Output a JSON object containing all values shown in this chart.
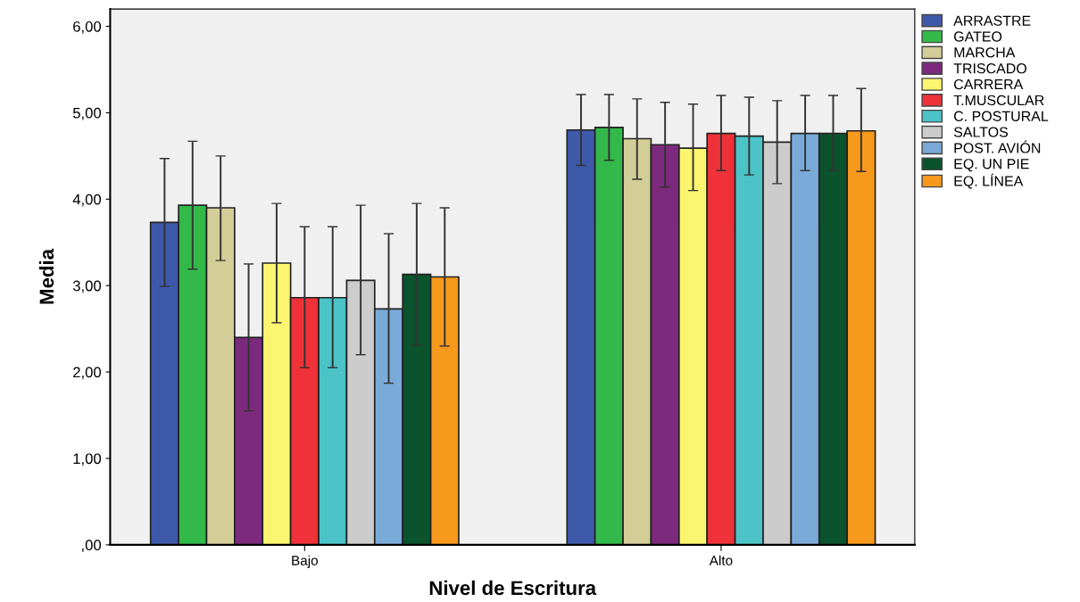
{
  "chart_data": {
    "type": "bar",
    "xlabel": "Nivel de Escritura",
    "ylabel": "Media",
    "categories": [
      "Bajo",
      "Alto"
    ],
    "ylim": [
      0,
      6.2
    ],
    "yticks": [
      {
        "value": 0,
        "label": ",00"
      },
      {
        "value": 1,
        "label": "1,00"
      },
      {
        "value": 2,
        "label": "2,00"
      },
      {
        "value": 3,
        "label": "3,00"
      },
      {
        "value": 4,
        "label": "4,00"
      },
      {
        "value": 5,
        "label": "5,00"
      },
      {
        "value": 6,
        "label": "6,00"
      }
    ],
    "grid": false,
    "legend": "top right",
    "series": [
      {
        "name": "ARRASTRE",
        "color": "#3f59aa",
        "values": [
          3.73,
          4.8
        ],
        "errors": [
          [
            2.99,
            4.47
          ],
          [
            4.39,
            5.21
          ]
        ]
      },
      {
        "name": "GATEO",
        "color": "#33b94a",
        "values": [
          3.93,
          4.83
        ],
        "errors": [
          [
            3.19,
            4.67
          ],
          [
            4.45,
            5.21
          ]
        ]
      },
      {
        "name": "MARCHA",
        "color": "#d3ce97",
        "values": [
          3.9,
          4.7
        ],
        "errors": [
          [
            3.29,
            4.5
          ],
          [
            4.23,
            5.16
          ]
        ]
      },
      {
        "name": "TRISCADO",
        "color": "#7c2a7e",
        "values": [
          2.4,
          4.63
        ],
        "errors": [
          [
            1.55,
            3.25
          ],
          [
            4.14,
            5.12
          ]
        ]
      },
      {
        "name": "CARRERA",
        "color": "#fbf56f",
        "values": [
          3.26,
          4.59
        ],
        "errors": [
          [
            2.57,
            3.95
          ],
          [
            4.1,
            5.1
          ]
        ]
      },
      {
        "name": "T.MUSCULAR",
        "color": "#ef3239",
        "values": [
          2.86,
          4.76
        ],
        "errors": [
          [
            2.05,
            3.68
          ],
          [
            4.33,
            5.2
          ]
        ]
      },
      {
        "name": "C. POSTURAL",
        "color": "#4bc3c7",
        "values": [
          2.86,
          4.73
        ],
        "errors": [
          [
            2.05,
            3.68
          ],
          [
            4.28,
            5.18
          ]
        ]
      },
      {
        "name": "SALTOS",
        "color": "#cccccc",
        "values": [
          3.06,
          4.66
        ],
        "errors": [
          [
            2.2,
            3.93
          ],
          [
            4.18,
            5.14
          ]
        ]
      },
      {
        "name": "POST. AVIÓN",
        "color": "#7aaad7",
        "values": [
          2.73,
          4.76
        ],
        "errors": [
          [
            1.87,
            3.6
          ],
          [
            4.33,
            5.2
          ]
        ]
      },
      {
        "name": "EQ. UN PIE",
        "color": "#0b532d",
        "values": [
          3.13,
          4.76
        ],
        "errors": [
          [
            2.31,
            3.95
          ],
          [
            4.33,
            5.2
          ]
        ]
      },
      {
        "name": "EQ. LÍNEA",
        "color": "#f7991d",
        "values": [
          3.1,
          4.79
        ],
        "errors": [
          [
            2.3,
            3.9
          ],
          [
            4.32,
            5.28
          ]
        ]
      }
    ]
  }
}
